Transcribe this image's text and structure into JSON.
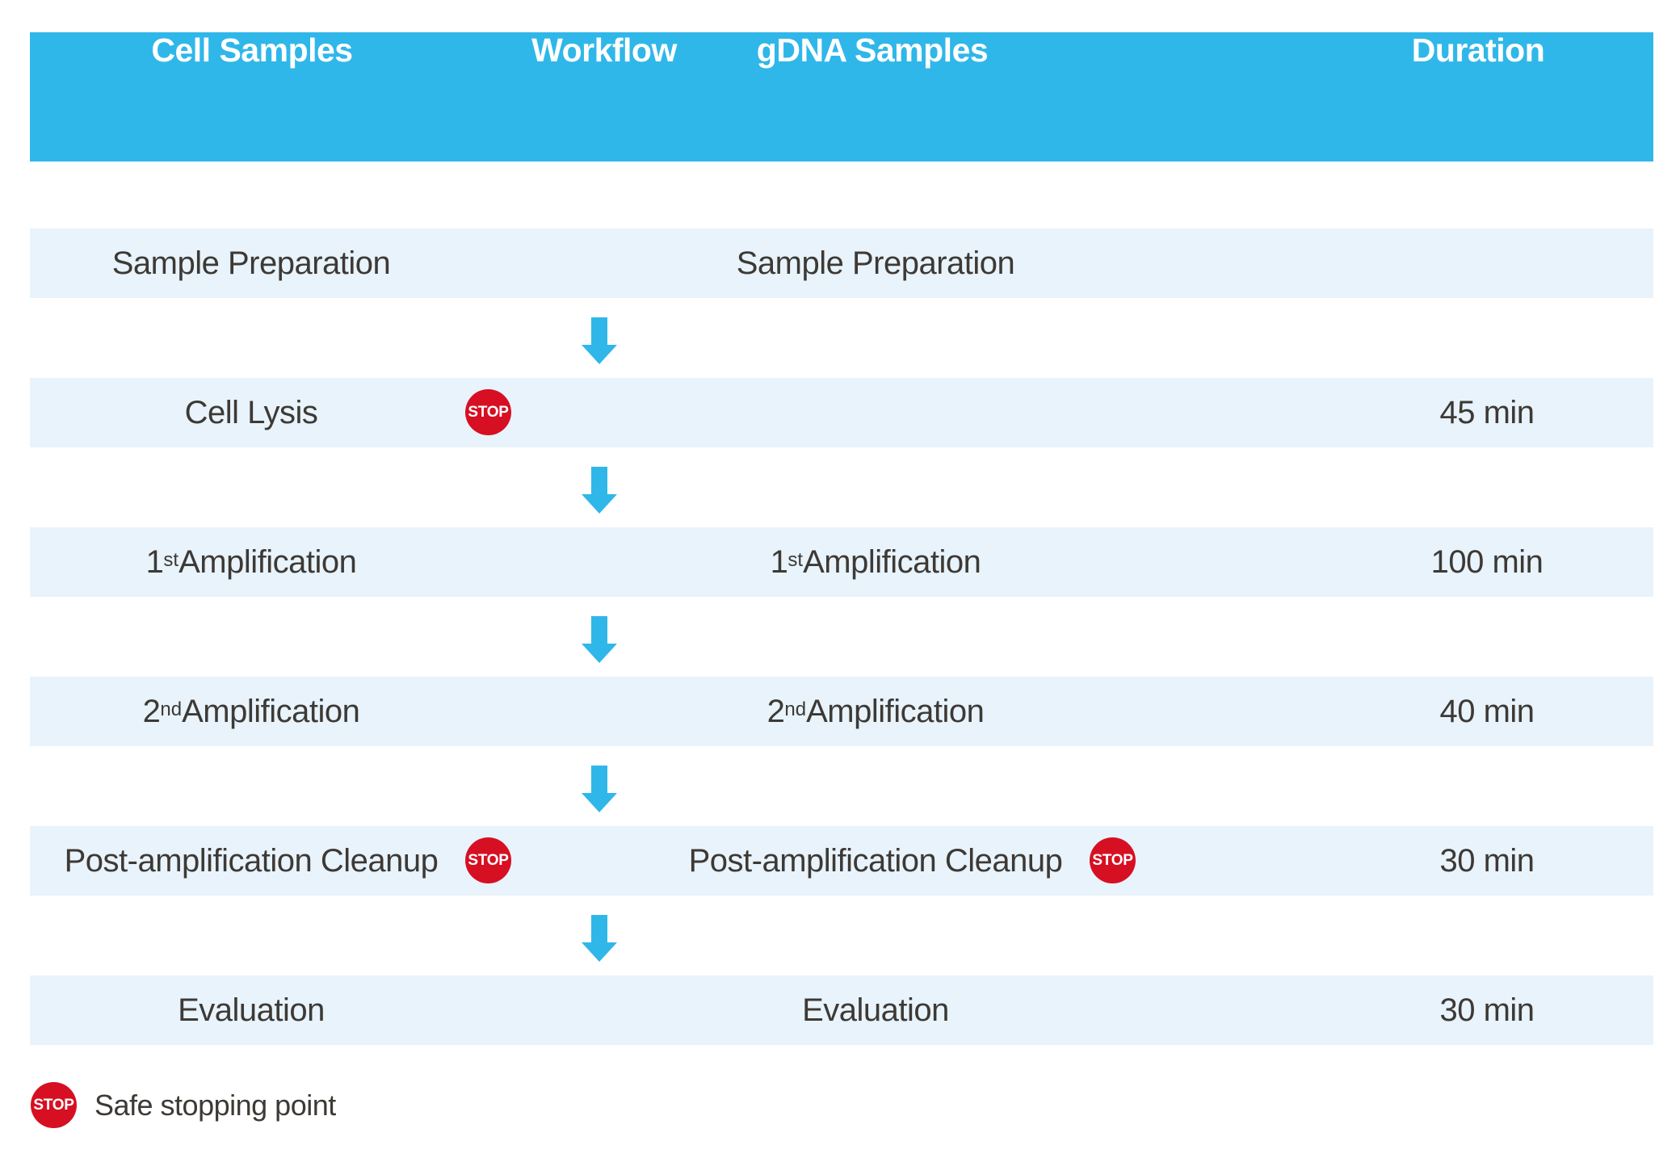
{
  "header": {
    "workflow": "Workflow",
    "col_cell": "Cell Samples",
    "col_gdna": "gDNA Samples",
    "col_duration": "Duration"
  },
  "stop_label": "STOP",
  "rows": [
    {
      "left": {
        "text": "Sample Preparation"
      },
      "mid": {
        "text": "Sample Preparation"
      },
      "duration": ""
    },
    {
      "left": {
        "text": "Cell Lysis",
        "stop": true
      },
      "mid": {
        "text": ""
      },
      "duration": "45 min"
    },
    {
      "left": {
        "base": "1",
        "sup": "st",
        "rest": " Amplification"
      },
      "mid": {
        "base": "1",
        "sup": "st",
        "rest": " Amplification"
      },
      "duration": "100 min"
    },
    {
      "left": {
        "base": "2",
        "sup": "nd",
        "rest": " Amplification"
      },
      "mid": {
        "base": "2",
        "sup": "nd",
        "rest": " Amplification"
      },
      "duration": "40 min"
    },
    {
      "left": {
        "text": "Post-amplification Cleanup",
        "stop": true
      },
      "mid": {
        "text": "Post-amplification Cleanup",
        "stop": true
      },
      "duration": "30 min"
    },
    {
      "left": {
        "text": "Evaluation"
      },
      "mid": {
        "text": "Evaluation"
      },
      "duration": "30 min"
    }
  ],
  "legend": {
    "text": "Safe stopping point"
  },
  "colors": {
    "header_blue": "#30b7e9",
    "row_bg": "#e8f3fb",
    "arrow_blue": "#30b7e9",
    "stop_red": "#d70f23",
    "text_dark": "#3d3935",
    "header_text": "#ffffff"
  }
}
